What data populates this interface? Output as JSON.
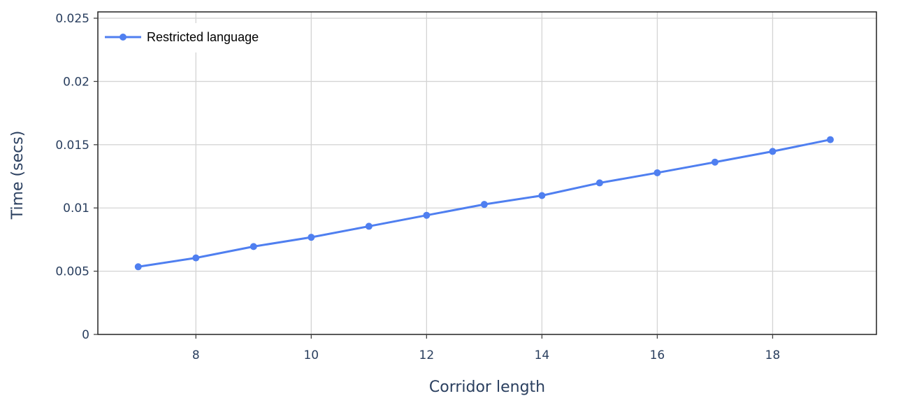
{
  "chart_data": {
    "type": "line",
    "title": "",
    "xlabel": "Corridor length",
    "ylabel": "Time (secs)",
    "xlim": [
      6.3,
      19.8
    ],
    "ylim": [
      0,
      0.0255
    ],
    "xticks": [
      8,
      10,
      12,
      14,
      16,
      18
    ],
    "xtick_labels": [
      "8",
      "10",
      "12",
      "14",
      "16",
      "18"
    ],
    "yticks": [
      0,
      0.005,
      0.01,
      0.015,
      0.02,
      0.025
    ],
    "ytick_labels": [
      "0",
      "0.005",
      "0.01",
      "0.015",
      "0.02",
      "0.025"
    ],
    "grid": true,
    "legend_position": "top-left",
    "series": [
      {
        "name": "Restricted language",
        "color": "#4f7ff0",
        "x": [
          7,
          8,
          9,
          10,
          11,
          12,
          13,
          14,
          15,
          16,
          17,
          18,
          19
        ],
        "y": [
          0.00535,
          0.00605,
          0.00695,
          0.00768,
          0.00855,
          0.00942,
          0.01028,
          0.01098,
          0.01198,
          0.01278,
          0.01362,
          0.01447,
          0.0154
        ]
      }
    ]
  }
}
